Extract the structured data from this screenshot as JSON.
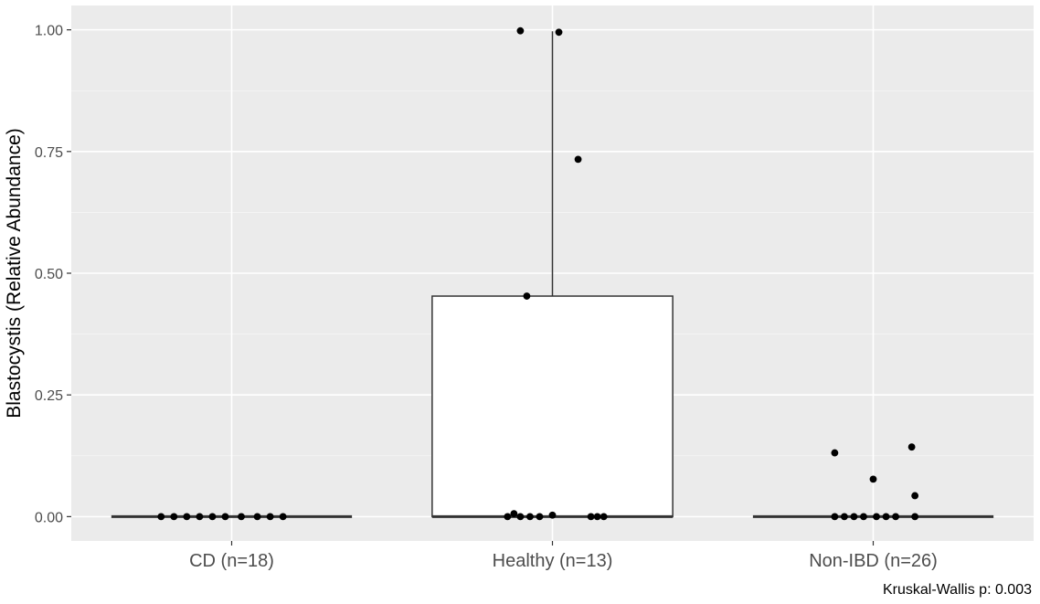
{
  "chart_data": {
    "type": "boxplot",
    "title": "",
    "xlabel": "",
    "ylabel": "Blastocystis (Relative Abundance)",
    "caption": "Kruskal-Wallis p: 0.003",
    "categories": [
      "CD (n=18)",
      "Healthy (n=13)",
      "Non-IBD (n=26)"
    ],
    "ylim": [
      -0.05,
      1.05
    ],
    "yticks": [
      0.0,
      0.25,
      0.5,
      0.75,
      1.0
    ],
    "ytick_labels": [
      "0.00",
      "0.25",
      "0.50",
      "0.75",
      "1.00"
    ],
    "grid": true,
    "colors": {
      "panel_bg": "#ebebeb",
      "grid_major": "#ffffff",
      "box_fill": "#ffffff",
      "box_line": "#333333",
      "point": "#000000"
    },
    "boxes": [
      {
        "category": "CD (n=18)",
        "min": 0,
        "q1": 0,
        "median": 0,
        "q3": 0,
        "max": 0
      },
      {
        "category": "Healthy (n=13)",
        "min": 0,
        "q1": 0,
        "median": 0,
        "q3": 0.453,
        "max": 0.997
      },
      {
        "category": "Non-IBD (n=26)",
        "min": 0,
        "q1": 0,
        "median": 0,
        "q3": 0,
        "max": 0
      }
    ],
    "points": [
      {
        "category": "CD (n=18)",
        "jitter": -0.22,
        "y": 0
      },
      {
        "category": "CD (n=18)",
        "jitter": -0.18,
        "y": 0
      },
      {
        "category": "CD (n=18)",
        "jitter": -0.14,
        "y": 0
      },
      {
        "category": "CD (n=18)",
        "jitter": -0.1,
        "y": 0
      },
      {
        "category": "CD (n=18)",
        "jitter": -0.06,
        "y": 0
      },
      {
        "category": "CD (n=18)",
        "jitter": -0.02,
        "y": 0
      },
      {
        "category": "CD (n=18)",
        "jitter": 0.03,
        "y": 0
      },
      {
        "category": "CD (n=18)",
        "jitter": 0.08,
        "y": 0
      },
      {
        "category": "CD (n=18)",
        "jitter": 0.12,
        "y": 0
      },
      {
        "category": "CD (n=18)",
        "jitter": 0.16,
        "y": 0
      },
      {
        "category": "Healthy (n=13)",
        "jitter": -0.1,
        "y": 0.998
      },
      {
        "category": "Healthy (n=13)",
        "jitter": 0.02,
        "y": 0.995
      },
      {
        "category": "Healthy (n=13)",
        "jitter": 0.08,
        "y": 0.734
      },
      {
        "category": "Healthy (n=13)",
        "jitter": -0.08,
        "y": 0.453
      },
      {
        "category": "Healthy (n=13)",
        "jitter": -0.12,
        "y": 0.006
      },
      {
        "category": "Healthy (n=13)",
        "jitter": -0.14,
        "y": 0
      },
      {
        "category": "Healthy (n=13)",
        "jitter": -0.1,
        "y": 0
      },
      {
        "category": "Healthy (n=13)",
        "jitter": -0.07,
        "y": 0
      },
      {
        "category": "Healthy (n=13)",
        "jitter": -0.04,
        "y": 0
      },
      {
        "category": "Healthy (n=13)",
        "jitter": 0.0,
        "y": 0.003
      },
      {
        "category": "Healthy (n=13)",
        "jitter": 0.12,
        "y": 0
      },
      {
        "category": "Healthy (n=13)",
        "jitter": 0.14,
        "y": 0
      },
      {
        "category": "Healthy (n=13)",
        "jitter": 0.16,
        "y": 0
      },
      {
        "category": "Non-IBD (n=26)",
        "jitter": -0.12,
        "y": 0.131
      },
      {
        "category": "Non-IBD (n=26)",
        "jitter": 0.12,
        "y": 0.143
      },
      {
        "category": "Non-IBD (n=26)",
        "jitter": 0.0,
        "y": 0.077
      },
      {
        "category": "Non-IBD (n=26)",
        "jitter": 0.13,
        "y": 0.043
      },
      {
        "category": "Non-IBD (n=26)",
        "jitter": -0.12,
        "y": 0
      },
      {
        "category": "Non-IBD (n=26)",
        "jitter": -0.09,
        "y": 0
      },
      {
        "category": "Non-IBD (n=26)",
        "jitter": -0.06,
        "y": 0
      },
      {
        "category": "Non-IBD (n=26)",
        "jitter": -0.03,
        "y": 0
      },
      {
        "category": "Non-IBD (n=26)",
        "jitter": 0.01,
        "y": 0
      },
      {
        "category": "Non-IBD (n=26)",
        "jitter": 0.04,
        "y": 0
      },
      {
        "category": "Non-IBD (n=26)",
        "jitter": 0.07,
        "y": 0
      },
      {
        "category": "Non-IBD (n=26)",
        "jitter": 0.13,
        "y": 0
      }
    ]
  }
}
